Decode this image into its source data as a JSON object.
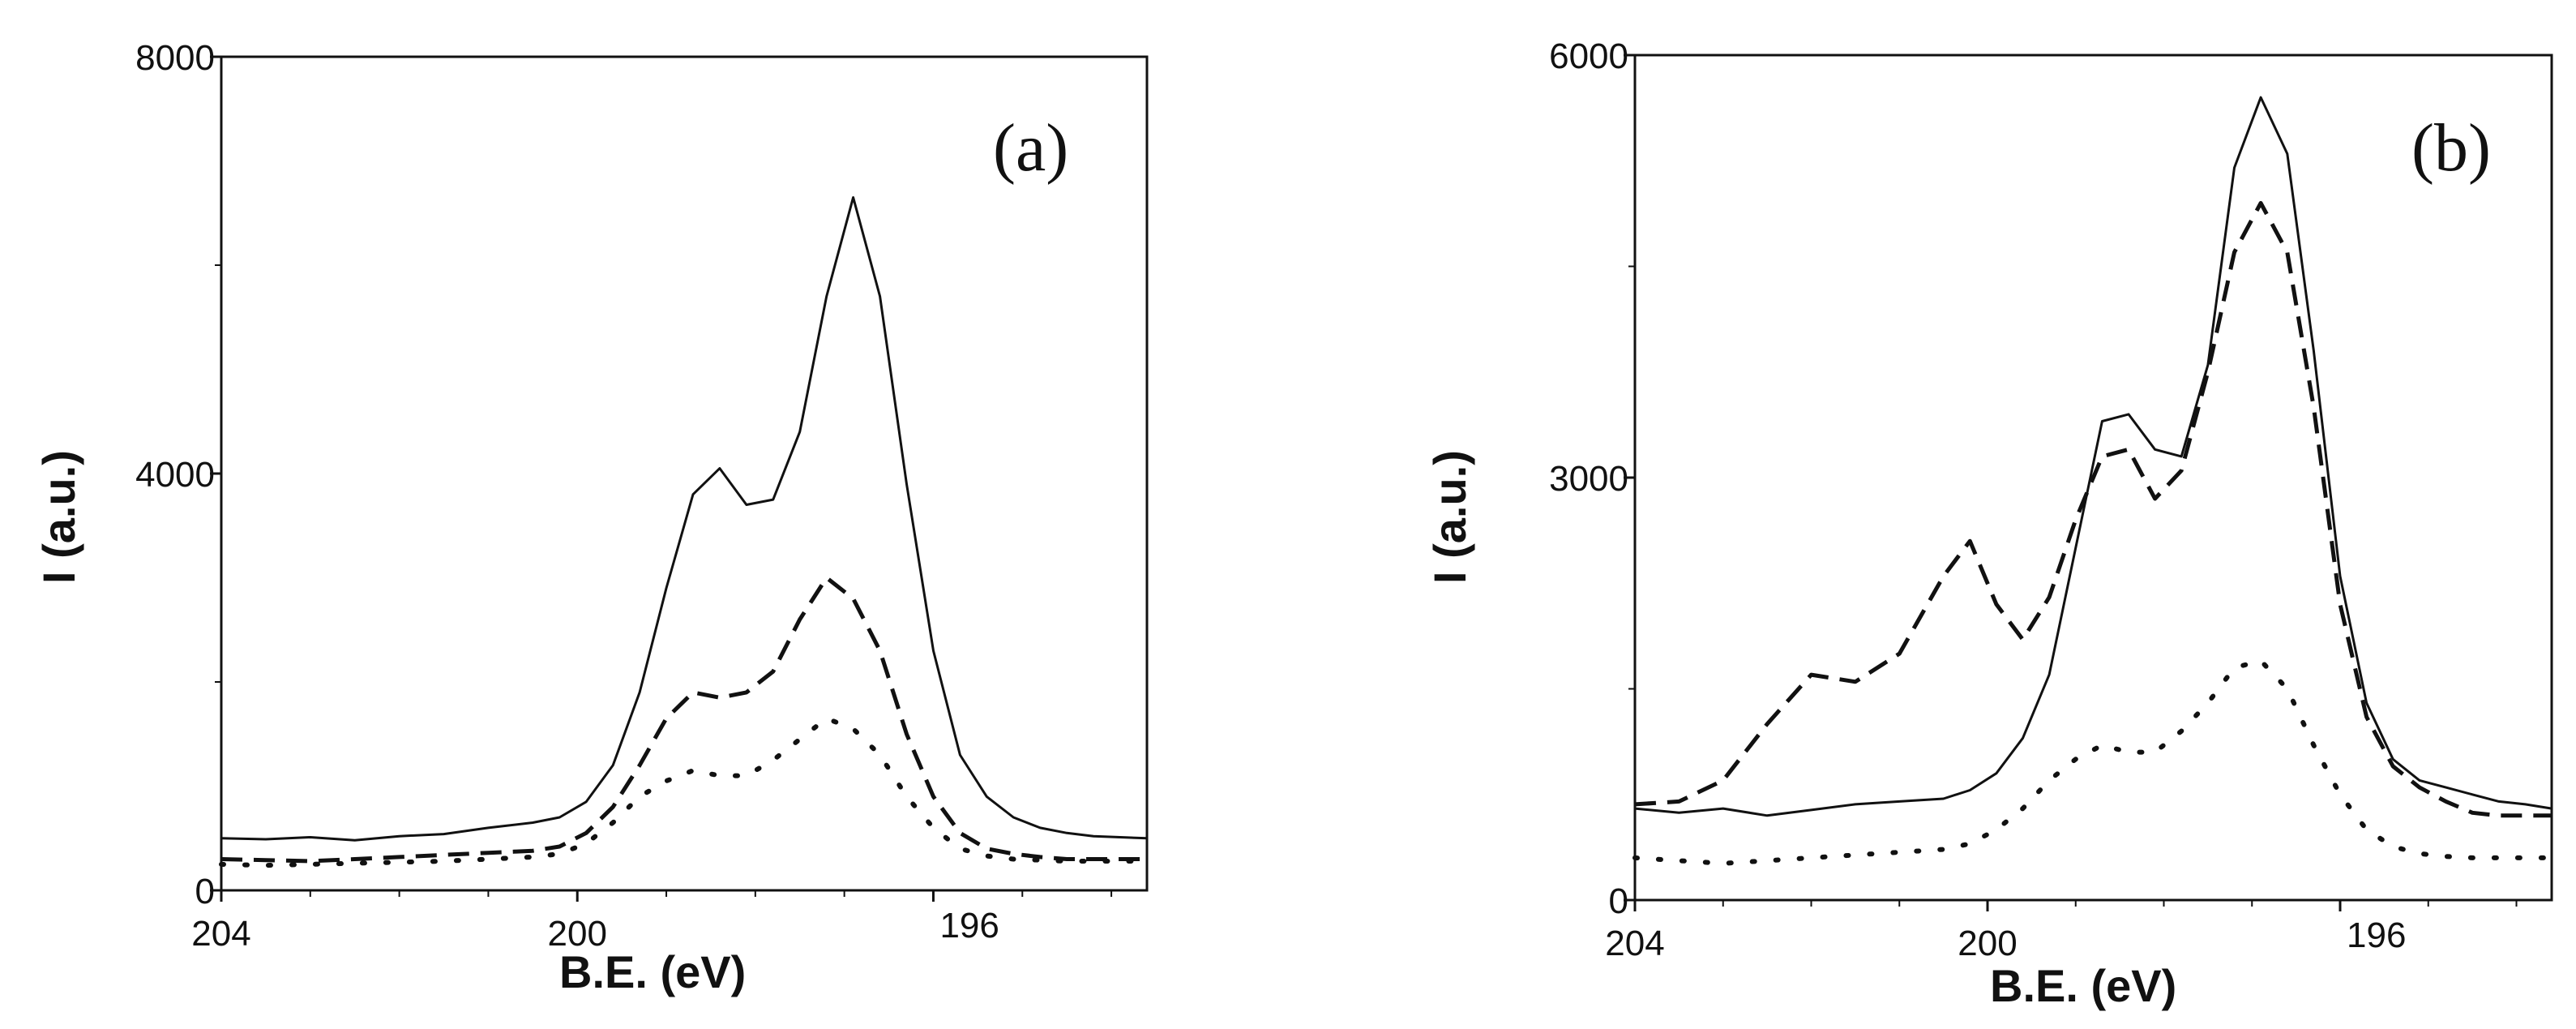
{
  "chart_data": [
    {
      "type": "line",
      "panel_label": "(a)",
      "xlabel": "B.E. (eV)",
      "ylabel": "I (a.u.)",
      "xlim": [
        204,
        193.6
      ],
      "ylim": [
        0,
        8000
      ],
      "x_ticks": [
        204,
        200,
        196
      ],
      "x_tick_labels": [
        "204",
        "200",
        "196"
      ],
      "y_ticks": [
        0,
        4000,
        8000
      ],
      "y_tick_labels": [
        "0",
        "4000",
        "8000"
      ],
      "series": [
        {
          "name": "solid",
          "style": "solid",
          "x": [
            204,
            203.5,
            203,
            202.5,
            202,
            201.5,
            201,
            200.5,
            200.2,
            199.9,
            199.6,
            199.3,
            199,
            198.7,
            198.4,
            198.1,
            197.8,
            197.5,
            197.2,
            196.9,
            196.6,
            196.3,
            196,
            195.7,
            195.4,
            195.1,
            194.8,
            194.5,
            194.2,
            193.9,
            193.6
          ],
          "y": [
            500,
            490,
            510,
            480,
            520,
            540,
            600,
            650,
            700,
            850,
            1200,
            1900,
            2900,
            3800,
            4050,
            3700,
            3750,
            4400,
            5700,
            6650,
            5700,
            3900,
            2300,
            1300,
            900,
            700,
            600,
            550,
            520,
            510,
            500
          ]
        },
        {
          "name": "dashed",
          "style": "dashed",
          "x": [
            204,
            203.5,
            203,
            202.5,
            202,
            201.5,
            201,
            200.5,
            200.2,
            199.9,
            199.6,
            199.3,
            199,
            198.7,
            198.4,
            198.1,
            197.8,
            197.5,
            197.2,
            196.9,
            196.6,
            196.3,
            196,
            195.7,
            195.4,
            195.1,
            194.8,
            194.5,
            194.2,
            193.9,
            193.6
          ],
          "y": [
            300,
            290,
            280,
            300,
            320,
            340,
            360,
            380,
            420,
            550,
            800,
            1200,
            1650,
            1900,
            1850,
            1900,
            2100,
            2600,
            3000,
            2800,
            2300,
            1500,
            900,
            550,
            400,
            350,
            320,
            300,
            300,
            300,
            300
          ]
        },
        {
          "name": "dotted",
          "style": "dotted",
          "x": [
            204,
            203.5,
            203,
            202.5,
            202,
            201.5,
            201,
            200.5,
            200.2,
            199.9,
            199.6,
            199.3,
            199,
            198.7,
            198.4,
            198.1,
            197.8,
            197.5,
            197.2,
            196.9,
            196.6,
            196.3,
            196,
            195.7,
            195.4,
            195.1,
            194.8,
            194.5,
            194.2,
            193.9,
            193.6
          ],
          "y": [
            250,
            240,
            250,
            260,
            270,
            280,
            300,
            320,
            350,
            450,
            650,
            900,
            1050,
            1150,
            1100,
            1100,
            1250,
            1450,
            1650,
            1550,
            1300,
            900,
            600,
            400,
            330,
            300,
            290,
            280,
            280,
            280,
            280
          ]
        }
      ]
    },
    {
      "type": "line",
      "panel_label": "(b)",
      "xlabel": "B.E. (eV)",
      "ylabel": "I (a.u.)",
      "xlim": [
        204,
        193.6
      ],
      "ylim": [
        0,
        6000
      ],
      "x_ticks": [
        204,
        200,
        196
      ],
      "x_tick_labels": [
        "204",
        "200",
        "196"
      ],
      "y_ticks": [
        0,
        3000,
        6000
      ],
      "y_tick_labels": [
        "0",
        "3000",
        "6000"
      ],
      "series": [
        {
          "name": "solid",
          "style": "solid",
          "x": [
            204,
            203.5,
            203,
            202.5,
            202,
            201.5,
            201,
            200.5,
            200.2,
            199.9,
            199.6,
            199.3,
            199,
            198.7,
            198.4,
            198.1,
            197.8,
            197.5,
            197.2,
            196.9,
            196.6,
            196.3,
            196,
            195.7,
            195.4,
            195.1,
            194.8,
            194.5,
            194.2,
            193.9,
            193.6
          ],
          "y": [
            650,
            620,
            650,
            600,
            640,
            680,
            700,
            720,
            780,
            900,
            1150,
            1600,
            2500,
            3400,
            3450,
            3200,
            3150,
            3800,
            5200,
            5700,
            5300,
            3900,
            2300,
            1400,
            1000,
            850,
            800,
            750,
            700,
            680,
            650
          ]
        },
        {
          "name": "dashed",
          "style": "dashed",
          "x": [
            204,
            203.5,
            203,
            202.5,
            202,
            201.5,
            201,
            200.5,
            200.2,
            199.9,
            199.6,
            199.3,
            199,
            198.7,
            198.4,
            198.1,
            197.8,
            197.5,
            197.2,
            196.9,
            196.6,
            196.3,
            196,
            195.7,
            195.4,
            195.1,
            194.8,
            194.5,
            194.2,
            193.9,
            193.6
          ],
          "y": [
            680,
            700,
            850,
            1250,
            1600,
            1550,
            1750,
            2300,
            2550,
            2100,
            1850,
            2150,
            2700,
            3150,
            3200,
            2850,
            3050,
            3750,
            4600,
            4950,
            4600,
            3500,
            2100,
            1300,
            950,
            800,
            700,
            620,
            600,
            600,
            600
          ]
        },
        {
          "name": "dotted",
          "style": "dotted",
          "x": [
            204,
            203.5,
            203,
            202.5,
            202,
            201.5,
            201,
            200.5,
            200.2,
            199.9,
            199.6,
            199.3,
            199,
            198.7,
            198.4,
            198.1,
            197.8,
            197.5,
            197.2,
            196.9,
            196.6,
            196.3,
            196,
            195.7,
            195.4,
            195.1,
            194.8,
            194.5,
            194.2,
            193.9,
            193.6
          ],
          "y": [
            300,
            280,
            260,
            280,
            300,
            320,
            340,
            360,
            400,
            500,
            650,
            850,
            1000,
            1100,
            1050,
            1050,
            1200,
            1400,
            1650,
            1700,
            1500,
            1100,
            750,
            500,
            380,
            330,
            310,
            300,
            300,
            300,
            300
          ]
        }
      ]
    }
  ]
}
